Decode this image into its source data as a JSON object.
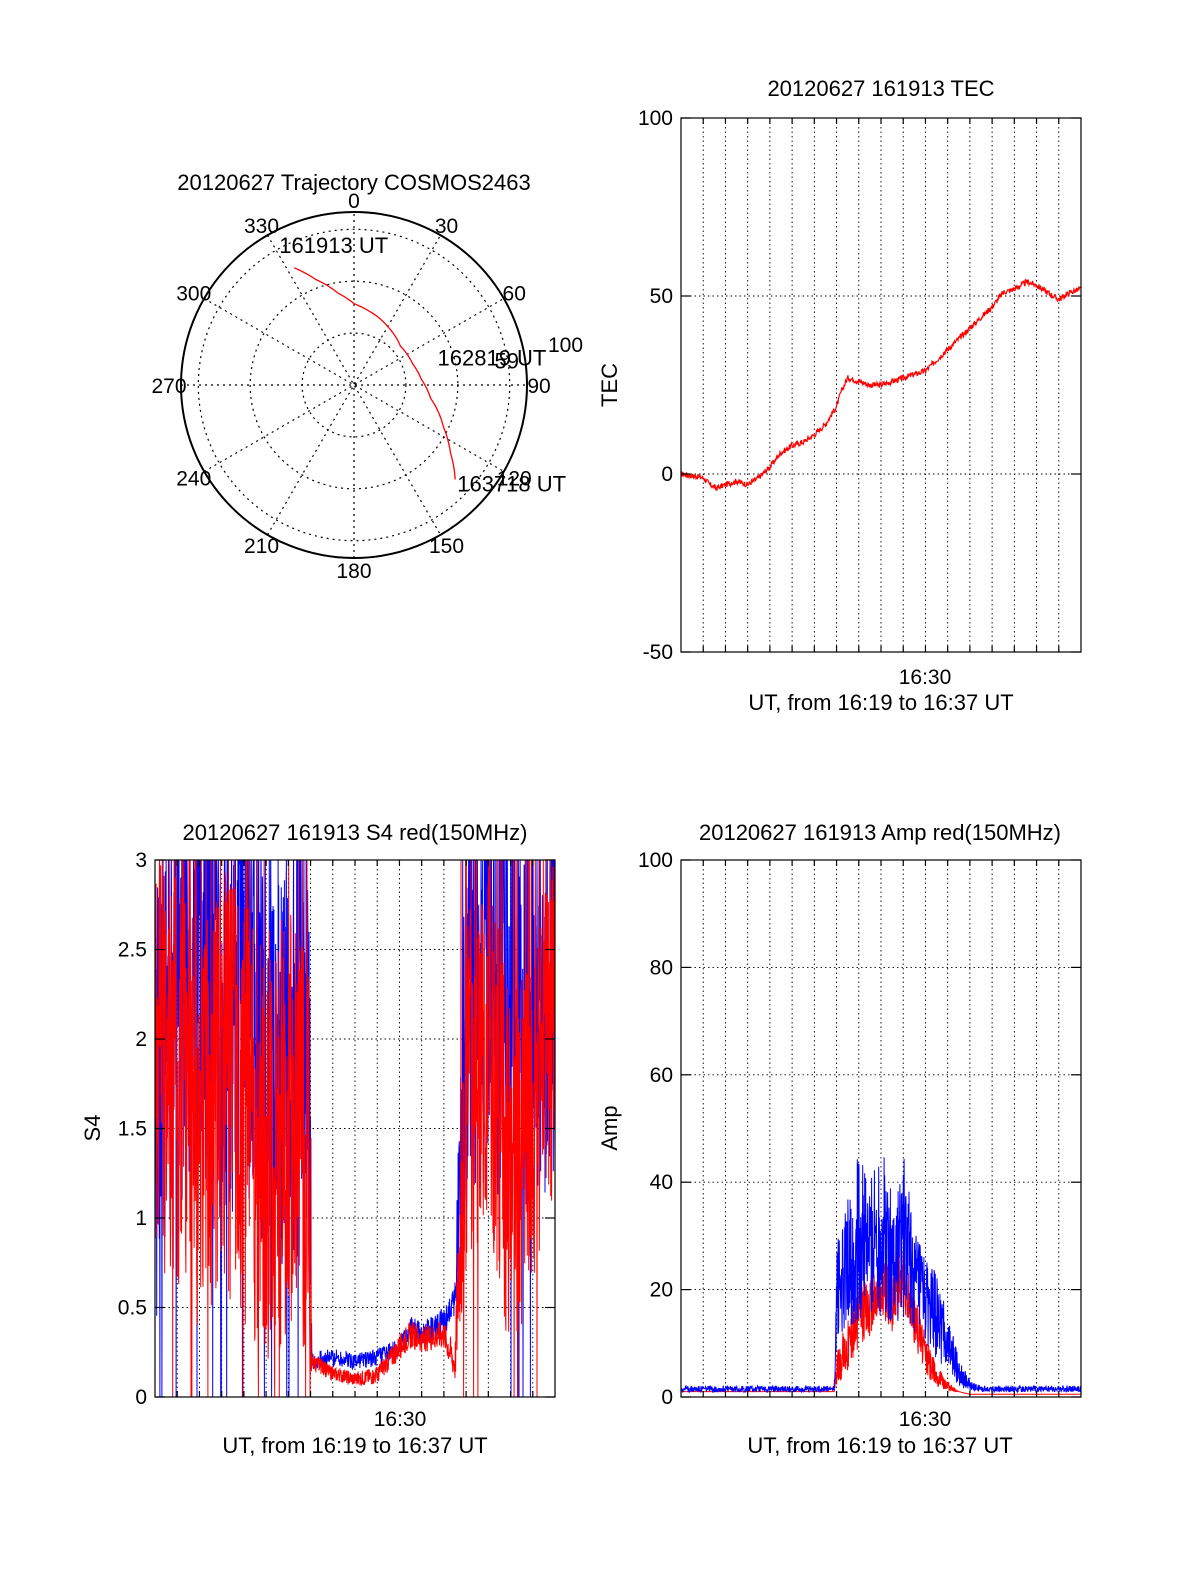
{
  "figure": {
    "colors": {
      "red": "#ff0000",
      "blue": "#0000ff",
      "axis": "#000000"
    }
  },
  "polar": {
    "type": "polar",
    "title": "20120627 Trajectory COSMOS2463",
    "angle_labels": [
      "0",
      "30",
      "60",
      "90",
      "120",
      "150",
      "180",
      "210",
      "240",
      "270",
      "300",
      "330"
    ],
    "radius_label": "100",
    "radial_rings": [
      30,
      60,
      90
    ],
    "trajectory": {
      "color": "#ff0000",
      "points": [
        {
          "az": 333,
          "r": 76
        },
        {
          "az": 340,
          "r": 65
        },
        {
          "az": 350,
          "r": 54
        },
        {
          "az": 0,
          "r": 47
        },
        {
          "az": 10,
          "r": 44
        },
        {
          "az": 30,
          "r": 39
        },
        {
          "az": 50,
          "r": 35
        },
        {
          "az": 70,
          "r": 36
        },
        {
          "az": 85,
          "r": 39
        },
        {
          "az": 100,
          "r": 45
        },
        {
          "az": 115,
          "r": 57
        },
        {
          "az": 125,
          "r": 68
        },
        {
          "az": 133,
          "r": 80
        }
      ]
    },
    "annotations": [
      {
        "text": "161913 UT",
        "az": 333,
        "r": 76
      },
      {
        "text": "162819 UT",
        "az": 70,
        "r": 36
      },
      {
        "text": "59",
        "az": 70,
        "r": 36
      },
      {
        "text": "163718 UT",
        "az": 133,
        "r": 80
      }
    ]
  },
  "chart_data": [
    {
      "type": "line",
      "title": "20120627 161913 TEC",
      "xlabel": "UT, from 16:19 to 16:37 UT",
      "ylabel": "TEC",
      "x_tick_label": "16:30",
      "xlim_minutes": [
        0,
        18
      ],
      "ylim": [
        -50,
        100
      ],
      "yticks": [
        -50,
        0,
        50,
        100
      ],
      "grid": true,
      "series": [
        {
          "color": "#ff0000",
          "x": [
            0,
            0.5,
            1,
            1.3,
            1.6,
            2,
            2.5,
            3,
            3.5,
            4,
            4.5,
            5,
            5.5,
            6,
            6.5,
            7,
            7.2,
            7.5,
            8,
            8.5,
            9,
            9.5,
            10,
            10.5,
            11,
            11.5,
            12,
            12.5,
            13,
            13.5,
            14,
            14.5,
            15,
            15.3,
            15.6,
            16,
            16.5,
            17,
            17.5,
            18
          ],
          "y": [
            0,
            -0.5,
            -1,
            -3,
            -4,
            -3,
            -2,
            -3,
            -1,
            2,
            6,
            8,
            9,
            11,
            14,
            19,
            23,
            27,
            26,
            25,
            25,
            26,
            27,
            28,
            29,
            32,
            35,
            38,
            41,
            44,
            47,
            51,
            52,
            53,
            54,
            53,
            51,
            49,
            51,
            52
          ]
        }
      ]
    },
    {
      "type": "line",
      "title": "20120627 161913 S4 red(150MHz)",
      "xlabel": "UT, from 16:19 to 16:37 UT",
      "ylabel": "S4",
      "x_tick_label": "16:30",
      "xlim_minutes": [
        0,
        18
      ],
      "ylim": [
        0,
        3
      ],
      "yticks": [
        0,
        0.5,
        1,
        1.5,
        2,
        2.5,
        3
      ],
      "grid": true,
      "series": [
        {
          "color": "#0000ff",
          "x": [
            0,
            1,
            2,
            3,
            4,
            5,
            6,
            6.5,
            7,
            7.05,
            8,
            9,
            10,
            11,
            11.5,
            12,
            13,
            13.5,
            14,
            15,
            16,
            17,
            18
          ],
          "y": [
            1.6,
            2.2,
            2.4,
            2.1,
            2.3,
            2.0,
            1.8,
            2.2,
            1.5,
            0.2,
            0.22,
            0.2,
            0.22,
            0.28,
            0.38,
            0.35,
            0.42,
            0.55,
            2.2,
            2.4,
            2.1,
            2.2,
            2.3
          ],
          "spread": [
            1.2,
            1.2,
            1.2,
            1.2,
            1.2,
            1.2,
            1.2,
            1.2,
            1.2,
            0.05,
            0.05,
            0.05,
            0.05,
            0.05,
            0.07,
            0.07,
            0.08,
            0.1,
            1.2,
            1.2,
            1.2,
            1.2,
            1.2
          ]
        },
        {
          "color": "#ff0000",
          "x": [
            0,
            1,
            2,
            3,
            4,
            5,
            6,
            6.5,
            7,
            7.05,
            8,
            9,
            10,
            11,
            11.5,
            12,
            13,
            13.5,
            14,
            15,
            16,
            17,
            18
          ],
          "y": [
            1.9,
            1.8,
            1.5,
            1.8,
            1.6,
            1.4,
            1.5,
            1.6,
            1.2,
            0.2,
            0.13,
            0.1,
            0.12,
            0.28,
            0.35,
            0.32,
            0.35,
            0.18,
            1.7,
            2.0,
            1.2,
            1.5,
            2.2
          ],
          "spread": [
            1.2,
            1.2,
            1.2,
            1.2,
            1.2,
            1.2,
            1.2,
            1.2,
            1.2,
            0.05,
            0.04,
            0.04,
            0.05,
            0.07,
            0.08,
            0.07,
            0.08,
            0.1,
            1.0,
            1.0,
            1.0,
            1.0,
            1.0
          ]
        }
      ]
    },
    {
      "type": "line",
      "title": "20120627 161913 Amp red(150MHz)",
      "xlabel": "UT, from 16:19 to 16:37 UT",
      "ylabel": "Amp",
      "x_tick_label": "16:30",
      "xlim_minutes": [
        0,
        18
      ],
      "ylim": [
        0,
        100
      ],
      "yticks": [
        0,
        20,
        40,
        60,
        80,
        100
      ],
      "grid": true,
      "series": [
        {
          "color": "#ff0000",
          "x": [
            0,
            6.9,
            7,
            7.5,
            8,
            8.5,
            9,
            9.5,
            10,
            10.5,
            11,
            11.5,
            12,
            12.5,
            13,
            18
          ],
          "y": [
            1,
            1,
            5,
            10,
            15,
            17,
            20,
            18,
            22,
            15,
            8,
            4,
            2,
            1,
            0.5,
            0.5
          ],
          "spread": [
            0,
            0,
            3,
            5,
            6,
            6,
            6,
            6,
            6,
            5,
            4,
            2,
            1,
            0,
            0,
            0
          ]
        },
        {
          "color": "#0000ff",
          "x": [
            0,
            6.9,
            7,
            7.5,
            8,
            8.5,
            9,
            9.5,
            10,
            10.5,
            11,
            11.5,
            12,
            12.5,
            13,
            13.5,
            18
          ],
          "y": [
            1.5,
            1.5,
            20,
            25,
            30,
            28,
            32,
            25,
            30,
            22,
            18,
            15,
            10,
            5,
            2,
            1.5,
            1.5
          ],
          "spread": [
            0.6,
            0.6,
            10,
            12,
            16,
            12,
            18,
            12,
            16,
            10,
            8,
            8,
            5,
            3,
            1,
            0.6,
            0.6
          ]
        }
      ]
    }
  ]
}
